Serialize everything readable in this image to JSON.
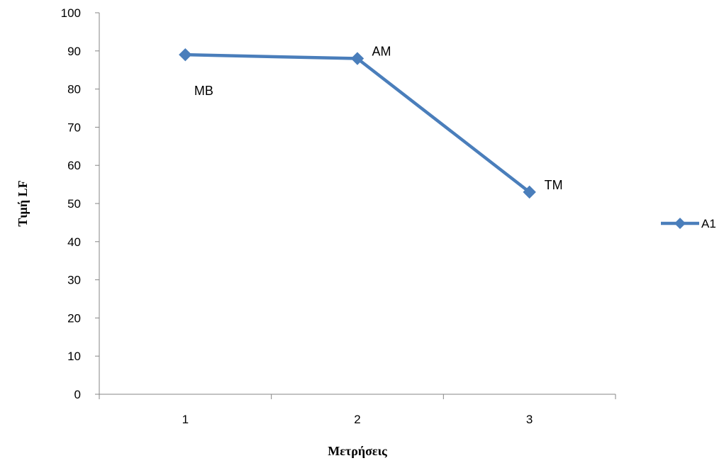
{
  "chart_data": {
    "type": "line",
    "categories": [
      "1",
      "2",
      "3"
    ],
    "series": [
      {
        "name": "A1",
        "values": [
          89,
          88,
          53
        ],
        "point_labels": [
          "MB",
          "AM",
          "TM"
        ],
        "color": "#4a7ebb"
      }
    ],
    "xlabel": "Μετρήσεις",
    "ylabel": "Τιμή LF",
    "ylim": [
      0,
      100
    ],
    "yticks": [
      0,
      10,
      20,
      30,
      40,
      50,
      60,
      70,
      80,
      90,
      100
    ],
    "grid": false,
    "legend_position": "right",
    "marker": "diamond"
  }
}
